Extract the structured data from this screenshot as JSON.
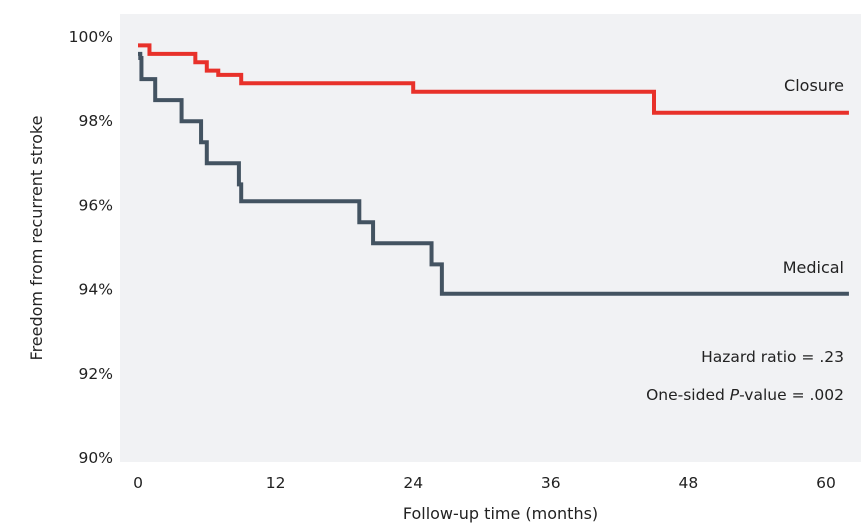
{
  "chart_data": {
    "type": "line",
    "xlabel": "Follow-up time (months)",
    "ylabel": "Freedom from recurrent stroke",
    "xlim": [
      0,
      62
    ],
    "ylim": [
      90,
      100
    ],
    "x_ticks": [
      0,
      12,
      24,
      36,
      48,
      60
    ],
    "x_tick_labels": [
      "0",
      "12",
      "24",
      "36",
      "48",
      "60"
    ],
    "y_ticks": [
      90,
      92,
      94,
      96,
      98,
      100
    ],
    "y_tick_labels": [
      "90%",
      "92%",
      "94%",
      "96%",
      "98%",
      "100%"
    ],
    "grid": false,
    "background": "#f1f2f4",
    "step_style": "post",
    "series": [
      {
        "name": "Closure",
        "color": "#e8312a",
        "x": [
          0,
          1,
          5,
          6,
          7,
          9,
          24,
          45,
          62
        ],
        "y": [
          99.8,
          99.6,
          99.4,
          99.2,
          99.1,
          98.9,
          98.7,
          98.2,
          98.2
        ]
      },
      {
        "name": "Medical",
        "color": "#435361",
        "x": [
          0,
          0.2,
          0.3,
          1.5,
          3,
          3.8,
          5.5,
          6,
          8,
          8.8,
          9,
          19.3,
          19.8,
          20.5,
          24,
          25.6,
          26.5,
          62
        ],
        "y": [
          99.6,
          99.5,
          99.0,
          98.5,
          98.5,
          98.0,
          97.5,
          97.0,
          97.0,
          96.5,
          96.1,
          95.6,
          95.6,
          95.1,
          95.1,
          94.6,
          93.9,
          93.9
        ]
      }
    ],
    "annotations": {
      "hazard_ratio": "Hazard ratio = .23",
      "p_value_prefix": "One-sided ",
      "p_value_italic": "P",
      "p_value_suffix": "-value = .002"
    }
  }
}
